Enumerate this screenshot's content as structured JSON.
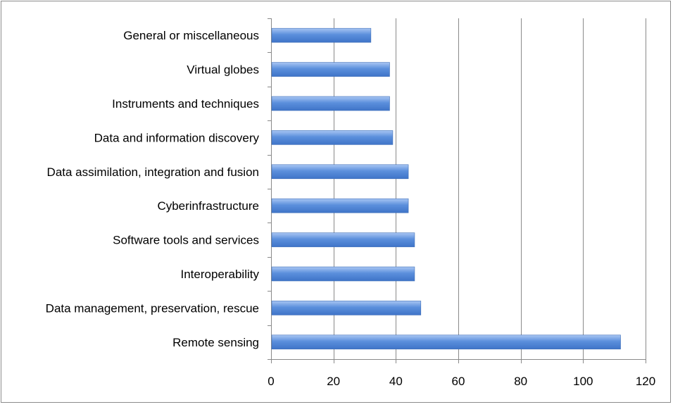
{
  "chart_data": {
    "type": "bar",
    "orientation": "horizontal",
    "categories": [
      "General or miscellaneous",
      "Virtual globes",
      "Instruments and techniques",
      "Data and information discovery",
      "Data assimilation, integration and fusion",
      "Cyberinfrastructure",
      "Software tools and services",
      "Interoperability",
      "Data management, preservation, rescue",
      "Remote sensing"
    ],
    "values": [
      32,
      38,
      38,
      39,
      44,
      44,
      46,
      46,
      48,
      112
    ],
    "xlim": [
      0,
      120
    ],
    "xticks": [
      0,
      20,
      40,
      60,
      80,
      100,
      120
    ],
    "xtick_labels": [
      "0",
      "20",
      "40",
      "60",
      "80",
      "100",
      "120"
    ],
    "grid": "vertical",
    "legend": "none",
    "bar_color": "#5b8fdc",
    "bar_highlight_color": "#a9c6f3",
    "gridline_color": "#8a8a8a"
  }
}
